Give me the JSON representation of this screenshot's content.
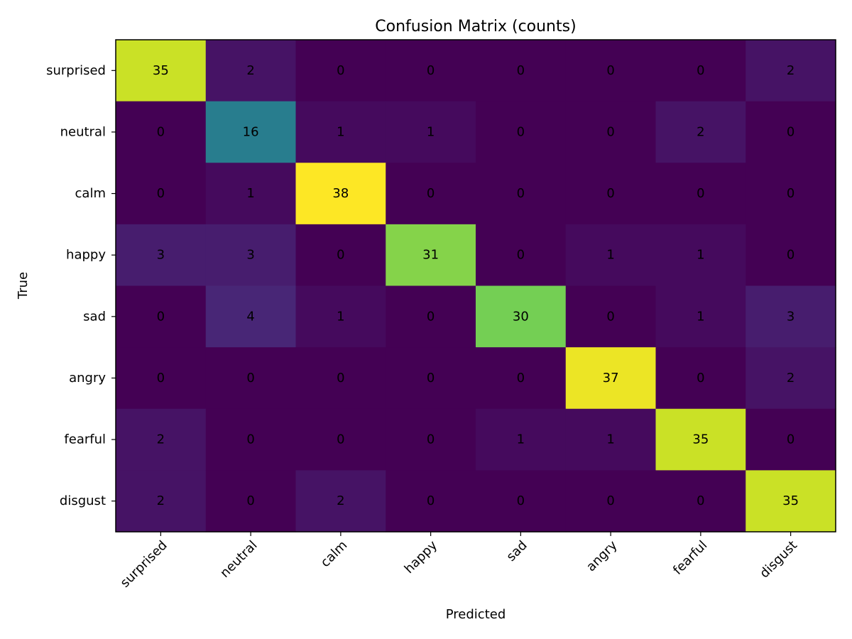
{
  "chart_data": {
    "type": "heatmap",
    "title": "Confusion Matrix (counts)",
    "xlabel": "Predicted",
    "ylabel": "True",
    "colormap": "viridis",
    "value_range": [
      0,
      38
    ],
    "row_labels": [
      "surprised",
      "neutral",
      "calm",
      "happy",
      "sad",
      "angry",
      "fearful",
      "disgust"
    ],
    "col_labels": [
      "surprised",
      "neutral",
      "calm",
      "happy",
      "sad",
      "angry",
      "fearful",
      "disgust"
    ],
    "matrix": [
      [
        35,
        2,
        0,
        0,
        0,
        0,
        0,
        2
      ],
      [
        0,
        16,
        1,
        1,
        0,
        0,
        2,
        0
      ],
      [
        0,
        1,
        38,
        0,
        0,
        0,
        0,
        0
      ],
      [
        3,
        3,
        0,
        31,
        0,
        1,
        1,
        0
      ],
      [
        0,
        4,
        1,
        0,
        30,
        0,
        1,
        3
      ],
      [
        0,
        0,
        0,
        0,
        0,
        37,
        0,
        2
      ],
      [
        2,
        0,
        0,
        0,
        1,
        1,
        35,
        0
      ],
      [
        2,
        0,
        2,
        0,
        0,
        0,
        0,
        35
      ]
    ]
  }
}
